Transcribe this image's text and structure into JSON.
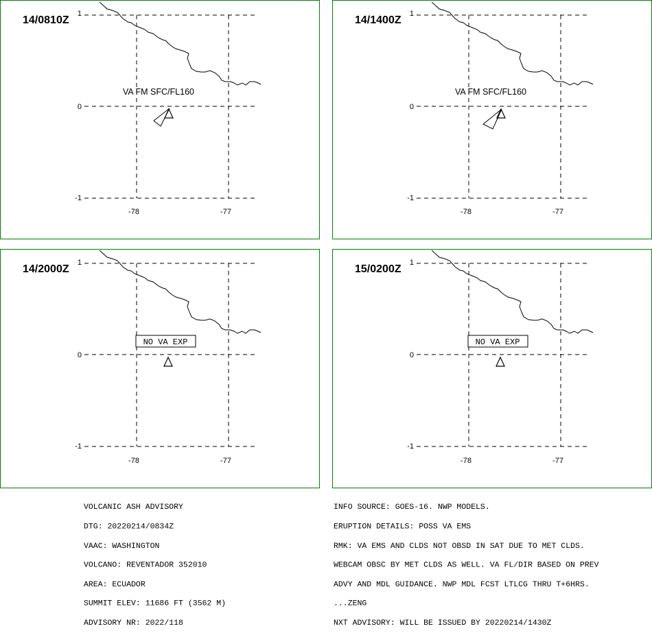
{
  "map": {
    "lat_ticks": [
      "1",
      "0",
      "-1"
    ],
    "lon_ticks": [
      "-78",
      "-77"
    ],
    "gridline_style": "dashed",
    "panel_border_color": "#008000",
    "volcano_marker": "volcano-triangle-icon"
  },
  "panels": [
    {
      "id": "p1",
      "time": "14/0810Z",
      "label": "VA FM SFC/FL160",
      "label_boxed": false,
      "ash_plume": true
    },
    {
      "id": "p2",
      "time": "14/1400Z",
      "label": "VA FM SFC/FL160",
      "label_boxed": false,
      "ash_plume": true
    },
    {
      "id": "p3",
      "time": "14/2000Z",
      "label": "NO VA EXP",
      "label_boxed": true,
      "ash_plume": false
    },
    {
      "id": "p4",
      "time": "15/0200Z",
      "label": "NO VA EXP",
      "label_boxed": true,
      "ash_plume": false
    }
  ],
  "advisory": {
    "left": [
      "VOLCANIC ASH ADVISORY",
      "DTG: 20220214/0834Z",
      "VAAC: WASHINGTON",
      "VOLCANO: REVENTADOR 352010",
      "AREA: ECUADOR",
      "SUMMIT ELEV: 11686 FT (3562 M)",
      "ADVISORY NR: 2022/118"
    ],
    "right": [
      "INFO SOURCE: GOES-16. NWP MODELS.",
      "ERUPTION DETAILS: POSS VA EMS",
      "RMK: VA EMS AND CLDS NOT OBSD IN SAT DUE TO MET CLDS.",
      "WEBCAM OBSC BY MET CLDS AS WELL. VA FL/DIR BASED ON PREV",
      "ADVY AND MDL GUIDANCE. NWP MDL FCST LTLCG THRU T+6HRS.",
      "...ZENG",
      "NXT ADVISORY: WILL BE ISSUED BY 20220214/1430Z"
    ]
  }
}
